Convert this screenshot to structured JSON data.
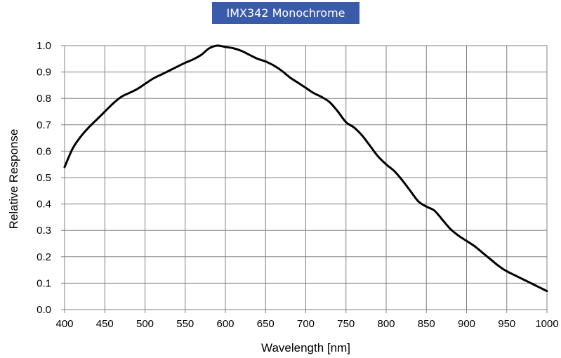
{
  "chart_data": {
    "type": "line",
    "title": "IMX342 Monochrome",
    "xlabel": "Wavelength [nm]",
    "ylabel": "Relative Response",
    "xlim": [
      400,
      1000
    ],
    "ylim": [
      0,
      1.0
    ],
    "grid": true,
    "x_ticks": [
      "400",
      "450",
      "500",
      "550",
      "600",
      "650",
      "700",
      "750",
      "800",
      "850",
      "900",
      "950",
      "1000"
    ],
    "y_ticks": [
      "0.0",
      "0.1",
      "0.2",
      "0.3",
      "0.4",
      "0.5",
      "0.6",
      "0.7",
      "0.8",
      "0.9",
      "1.0"
    ],
    "line_color": "#000000",
    "series": [
      {
        "x": [
          400,
          410,
          420,
          430,
          440,
          450,
          460,
          470,
          480,
          490,
          500,
          510,
          520,
          530,
          540,
          550,
          560,
          570,
          580,
          590,
          600,
          610,
          620,
          630,
          640,
          650,
          660,
          670,
          680,
          690,
          700,
          710,
          720,
          730,
          740,
          750,
          760,
          770,
          780,
          790,
          800,
          810,
          820,
          830,
          840,
          850,
          860,
          870,
          880,
          890,
          900,
          910,
          920,
          930,
          940,
          950,
          960,
          970,
          980,
          990,
          1000
        ],
        "y": [
          0.54,
          0.61,
          0.655,
          0.69,
          0.72,
          0.75,
          0.78,
          0.805,
          0.82,
          0.835,
          0.855,
          0.875,
          0.89,
          0.905,
          0.92,
          0.935,
          0.948,
          0.965,
          0.99,
          1.0,
          0.995,
          0.99,
          0.98,
          0.965,
          0.95,
          0.94,
          0.925,
          0.905,
          0.88,
          0.86,
          0.84,
          0.82,
          0.805,
          0.785,
          0.75,
          0.71,
          0.69,
          0.66,
          0.62,
          0.58,
          0.55,
          0.525,
          0.49,
          0.45,
          0.41,
          0.39,
          0.375,
          0.34,
          0.305,
          0.28,
          0.26,
          0.24,
          0.215,
          0.19,
          0.165,
          0.145,
          0.13,
          0.115,
          0.1,
          0.085,
          0.07
        ]
      }
    ]
  }
}
